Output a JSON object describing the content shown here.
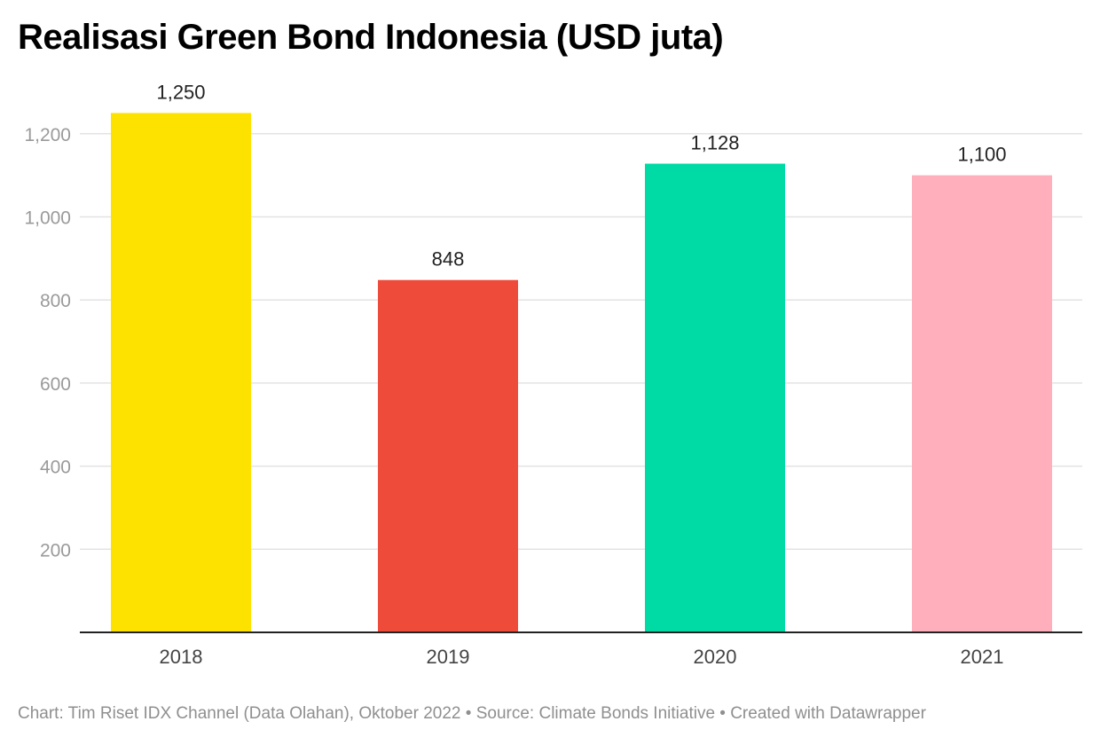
{
  "chart_data": {
    "type": "bar",
    "title": "Realisasi Green Bond Indonesia (USD juta)",
    "categories": [
      "2018",
      "2019",
      "2020",
      "2021"
    ],
    "values": [
      1250,
      848,
      1128,
      1100
    ],
    "value_labels": [
      "1,250",
      "848",
      "1,128",
      "1,100"
    ],
    "colors": [
      "#fde200",
      "#ef4b3b",
      "#00dba5",
      "#ffaebc"
    ],
    "yticks": [
      {
        "value": 200,
        "label": "200"
      },
      {
        "value": 400,
        "label": "400"
      },
      {
        "value": 600,
        "label": "600"
      },
      {
        "value": 800,
        "label": "800"
      },
      {
        "value": 1000,
        "label": "1,000"
      },
      {
        "value": 1200,
        "label": "1,200"
      }
    ],
    "ylim": [
      0,
      1250
    ],
    "grid": true,
    "xlabel": "",
    "ylabel": ""
  },
  "footer": "Chart: Tim Riset IDX Channel (Data Olahan), Oktober 2022 • Source: Climate Bonds Initiative • Created with Datawrapper"
}
